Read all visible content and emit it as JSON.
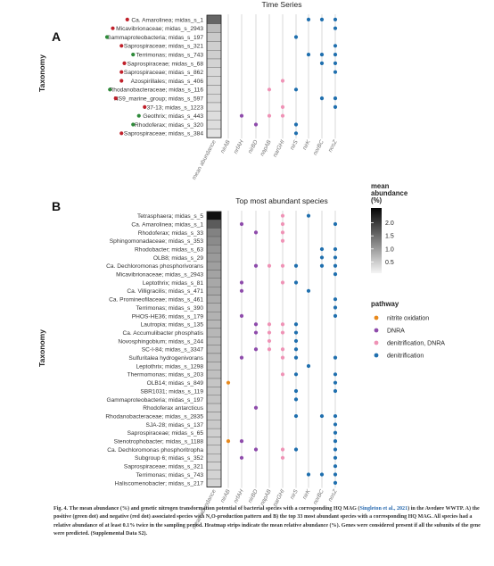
{
  "panels": [
    {
      "letter": "A",
      "title": "Time Series",
      "ylabel": "Taxonomy",
      "rows": [
        {
          "label": "Ca. Amarolinea; midas_s_1",
          "dot": "red",
          "abund": 1.5,
          "genes": [
            "nirK_",
            "norB",
            "nosZ"
          ]
        },
        {
          "label": "Micavibrionaceae; midas_s_2943",
          "dot": "red",
          "abund": 0.6,
          "genes": [
            "nosZ"
          ]
        },
        {
          "label": "Gammaproteobacteria; midas_s_197",
          "dot": "green",
          "abund": 0.45,
          "genes": [
            "nirS"
          ]
        },
        {
          "label": "Saprospiraceae; midas_s_321",
          "dot": "red",
          "abund": 0.4,
          "genes": [
            "nosZ"
          ]
        },
        {
          "label": "Terrimonas; midas_s_743",
          "dot": "green",
          "abund": 0.4,
          "genes": [
            "nirK",
            "norBC",
            "nosZ"
          ]
        },
        {
          "label": "Saprospiraceae; midas_s_68",
          "dot": "red",
          "abund": 0.35,
          "genes": [
            "norBC",
            "nosZ"
          ]
        },
        {
          "label": "Saprospiraceae; midas_s_862",
          "dot": "red",
          "abund": 0.3,
          "genes": [
            "nosZ"
          ]
        },
        {
          "label": "Azospirillales; midas_s_406",
          "dot": "red",
          "abund": 0.3,
          "genes": [
            "narGHI"
          ]
        },
        {
          "label": "Rhodanobacteraceae; midas_s_116",
          "dot": "green",
          "abund": 0.3,
          "genes": [
            "napAB",
            "nirS"
          ]
        },
        {
          "label": "NS9_marine_group; midas_s_597",
          "dot": "red",
          "abund": 0.3,
          "genes": [
            "norBC",
            "nosZ"
          ]
        },
        {
          "label": "37-13; midas_s_1223",
          "dot": "red",
          "abund": 0.25,
          "genes": [
            "narGHI",
            "nosZ"
          ]
        },
        {
          "label": "Geothrix; midas_s_443",
          "dot": "green",
          "abund": 0.25,
          "genes": [
            "nrfAH",
            "napAB",
            "narGHI"
          ]
        },
        {
          "label": "Rhodoferax; midas_s_320",
          "dot": "green",
          "abund": 0.25,
          "genes": [
            "nirBD",
            "nirS"
          ]
        },
        {
          "label": "Saprospiraceae; midas_s_384",
          "dot": "red",
          "abund": 0.2,
          "genes": [
            "nirS"
          ]
        }
      ]
    },
    {
      "letter": "B",
      "title": "Top most abundant species",
      "ylabel": "Taxonomy",
      "rows": [
        {
          "label": "Tetrasphaera; midas_s_5",
          "abund": 2.4,
          "genes": [
            "narGHI",
            "nirK"
          ]
        },
        {
          "label": "Ca. Amarolinea; midas_s_1",
          "abund": 1.6,
          "genes": [
            "nrfAH",
            "narGHI",
            "nosZ"
          ]
        },
        {
          "label": "Rhodoferax; midas_s_33",
          "abund": 1.2,
          "genes": [
            "nirBD",
            "narGHI"
          ]
        },
        {
          "label": "Sphingomonadaceae; midas_s_353",
          "abund": 1.1,
          "genes": [
            "narGHI"
          ]
        },
        {
          "label": "Rhodobacter; midas_s_63",
          "abund": 1.0,
          "genes": [
            "norBC",
            "nosZ"
          ]
        },
        {
          "label": "OLB8; midas_s_29",
          "abund": 0.95,
          "genes": [
            "norBC",
            "nosZ"
          ]
        },
        {
          "label": "Ca. Dechloromonas phosphorivorans",
          "abund": 0.9,
          "genes": [
            "nirBD",
            "napAB",
            "narGHI",
            "nirS",
            "norBC",
            "nosZ"
          ]
        },
        {
          "label": "Micavibrionaceae; midas_s_2943",
          "abund": 0.85,
          "genes": [
            "nosZ"
          ]
        },
        {
          "label": "Leptothrix; midas_s_81",
          "abund": 0.8,
          "genes": [
            "nrfAH",
            "narGHI",
            "nirS"
          ]
        },
        {
          "label": "Ca. Villigracilis; midas_s_471",
          "abund": 0.8,
          "genes": [
            "nrfAH",
            "nirK"
          ]
        },
        {
          "label": "Ca. Promineofilaceae; midas_s_461",
          "abund": 0.75,
          "genes": [
            "nosZ"
          ]
        },
        {
          "label": "Terrimonas; midas_s_390",
          "abund": 0.7,
          "genes": [
            "nosZ"
          ]
        },
        {
          "label": "PHOS-HE36; midas_s_179",
          "abund": 0.7,
          "genes": [
            "nrfAH",
            "nosZ"
          ]
        },
        {
          "label": "Lautropia; midas_s_135",
          "abund": 0.65,
          "genes": [
            "nirBD",
            "napAB",
            "narGHI",
            "nirS"
          ]
        },
        {
          "label": "Ca. Accumulibacter phosphatis",
          "abund": 0.65,
          "genes": [
            "nirBD",
            "napAB",
            "narGHI",
            "nirS"
          ]
        },
        {
          "label": "Novosphingobium; midas_s_244",
          "abund": 0.6,
          "genes": [
            "napAB",
            "nirS"
          ]
        },
        {
          "label": "SC-I-84; midas_s_3347",
          "abund": 0.6,
          "genes": [
            "nirBD",
            "napAB",
            "narGHI",
            "nirS"
          ]
        },
        {
          "label": "Sulfuritalea hydrogenivorans",
          "abund": 0.6,
          "genes": [
            "nrfAH",
            "narGHI",
            "nirS",
            "nosZ"
          ]
        },
        {
          "label": "Leptothrix; midas_s_1298",
          "abund": 0.55,
          "genes": [
            "nirK"
          ]
        },
        {
          "label": "Thermomonas; midas_s_203",
          "abund": 0.55,
          "genes": [
            "narGHI",
            "nirS",
            "nosZ"
          ]
        },
        {
          "label": "OLB14; midas_s_849",
          "abund": 0.5,
          "genes": [
            "nirAB",
            "nosZ"
          ]
        },
        {
          "label": "SBR1031; midas_s_119",
          "abund": 0.5,
          "genes": [
            "nirS",
            "nosZ"
          ]
        },
        {
          "label": "Gammaproteobacteria; midas_s_197",
          "abund": 0.5,
          "genes": [
            "nirS"
          ]
        },
        {
          "label": "Rhodoferax antarcticus",
          "abund": 0.45,
          "genes": [
            "nirBD"
          ]
        },
        {
          "label": "Rhodanobacteraceae; midas_s_2835",
          "abund": 0.45,
          "genes": [
            "nirS",
            "norBC",
            "nosZ"
          ]
        },
        {
          "label": "SJA-28; midas_s_137",
          "abund": 0.45,
          "genes": [
            "nosZ"
          ]
        },
        {
          "label": "Saprospiraceae; midas_s_65",
          "abund": 0.4,
          "genes": [
            "nosZ"
          ]
        },
        {
          "label": "Stenotrophobacter; midas_s_1188",
          "abund": 0.4,
          "genes": [
            "nirAB",
            "nrfAH",
            "nosZ"
          ]
        },
        {
          "label": "Ca. Dechloromonas phosphoritropha",
          "abund": 0.4,
          "genes": [
            "nirBD",
            "narGHI",
            "nirS",
            "nosZ"
          ]
        },
        {
          "label": "Subgroup 6; midas_s_352",
          "abund": 0.4,
          "genes": [
            "nrfAH",
            "narGHI",
            "nosZ"
          ]
        },
        {
          "label": "Saprospiraceae; midas_s_321",
          "abund": 0.35,
          "genes": [
            "nosZ"
          ]
        },
        {
          "label": "Terrimonas; midas_s_743",
          "abund": 0.35,
          "genes": [
            "nirK",
            "norBC",
            "nosZ"
          ]
        },
        {
          "label": "Haliscomenobacter; midas_s_217",
          "abund": 0.35,
          "genes": [
            "nosZ"
          ]
        }
      ]
    }
  ],
  "columns": [
    "mean abundance",
    "nirAB",
    "nrfAH",
    "nirBD",
    "napAB",
    "narGHI",
    "nirS",
    "nirK",
    "norBC",
    "nosZ"
  ],
  "gene_pathway": {
    "nirAB": "nitrite oxidation",
    "nrfAH": "DNRA",
    "nirBD": "DNRA",
    "napAB": "denitrification, DNRA",
    "narGHI": "denitrification, DNRA",
    "nirS": "denitrification",
    "nirK": "denitrification",
    "norBC": "denitrification",
    "nosZ": "denitrification",
    "nirK_": "denitrification",
    "norB": "denitrification"
  },
  "legend_abundance": {
    "title": "mean abundance (%)",
    "ticks": [
      "2.4",
      "2.0",
      "1.5",
      "1.0",
      "0.5"
    ],
    "tick_values": [
      2.4,
      2.0,
      1.5,
      1.0,
      0.5
    ],
    "max": 2.5
  },
  "legend_pathway": {
    "title": "pathway",
    "items": [
      {
        "label": "nitrite oxidation",
        "color": "#e8891c"
      },
      {
        "label": "DNRA",
        "color": "#8e4bab"
      },
      {
        "label": "denitrification, DNRA",
        "color": "#ef93b6"
      },
      {
        "label": "denitrification",
        "color": "#1f6fae"
      }
    ]
  },
  "dot_colors": {
    "red": "#c0202a",
    "green": "#2e8a3a"
  },
  "caption": {
    "lead": "Fig. 4.",
    "part1": " The mean abundance (%) and genetic nitrogen transformation potential of bacterial species with a corresponding HQ MAG (",
    "ref": "Singleton et al., 2021",
    "part2": ") in the Avedøre WWTP. A) the positive (green dot) and negative (red dot) associated species with N₂O-production pattern and B) the top 33 most abundant species with a corresponding HQ MAG. All species had a relative abundance of at least 0.1% twice in the sampling period. Heatmap strips indicate the mean relative abundance (%). Genes were considered present if all the subunits of the gene were predicted. (Supplemental Data S2)."
  }
}
